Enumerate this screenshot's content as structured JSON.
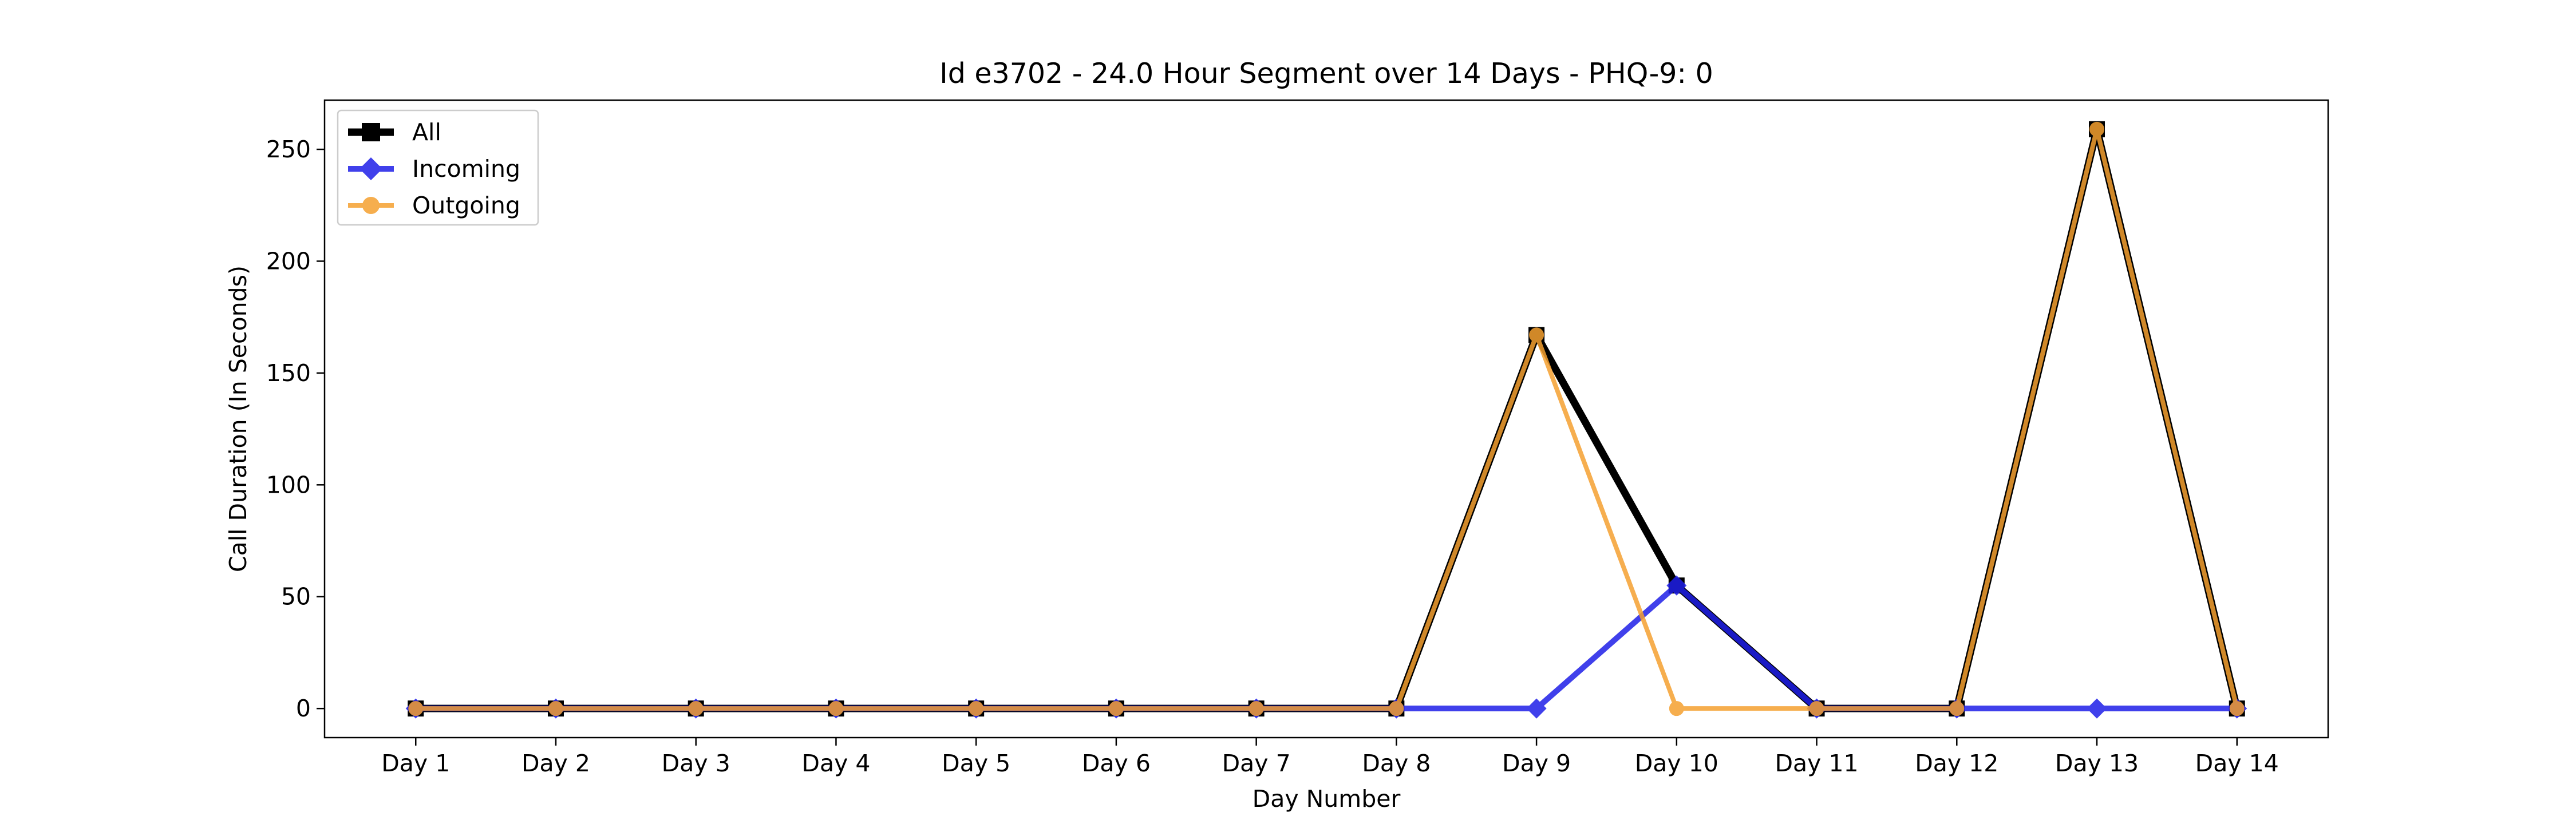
{
  "chart_data": {
    "type": "line",
    "title": "Id e3702 - 24.0 Hour Segment over 14 Days - PHQ-9: 0",
    "xlabel": "Day Number",
    "ylabel": "Call Duration (In Seconds)",
    "categories": [
      "Day 1",
      "Day 2",
      "Day 3",
      "Day 4",
      "Day 5",
      "Day 6",
      "Day 7",
      "Day 8",
      "Day 9",
      "Day 10",
      "Day 11",
      "Day 12",
      "Day 13",
      "Day 14"
    ],
    "ylim": [
      -13,
      272
    ],
    "yticks": [
      0,
      50,
      100,
      150,
      200,
      250
    ],
    "grid": false,
    "legend_position": "top-left",
    "series": [
      {
        "name": "All",
        "color": "#000000",
        "marker": "square",
        "values": [
          0,
          0,
          0,
          0,
          0,
          0,
          0,
          0,
          167,
          55,
          0,
          0,
          259,
          0
        ]
      },
      {
        "name": "Incoming",
        "color": "#1f1fe8",
        "marker": "diamond",
        "values": [
          0,
          0,
          0,
          0,
          0,
          0,
          0,
          0,
          0,
          55,
          0,
          0,
          0,
          0
        ]
      },
      {
        "name": "Outgoing",
        "color": "#f5a030",
        "marker": "circle",
        "values": [
          0,
          0,
          0,
          0,
          0,
          0,
          0,
          0,
          167,
          0,
          0,
          0,
          259,
          0
        ]
      }
    ]
  }
}
